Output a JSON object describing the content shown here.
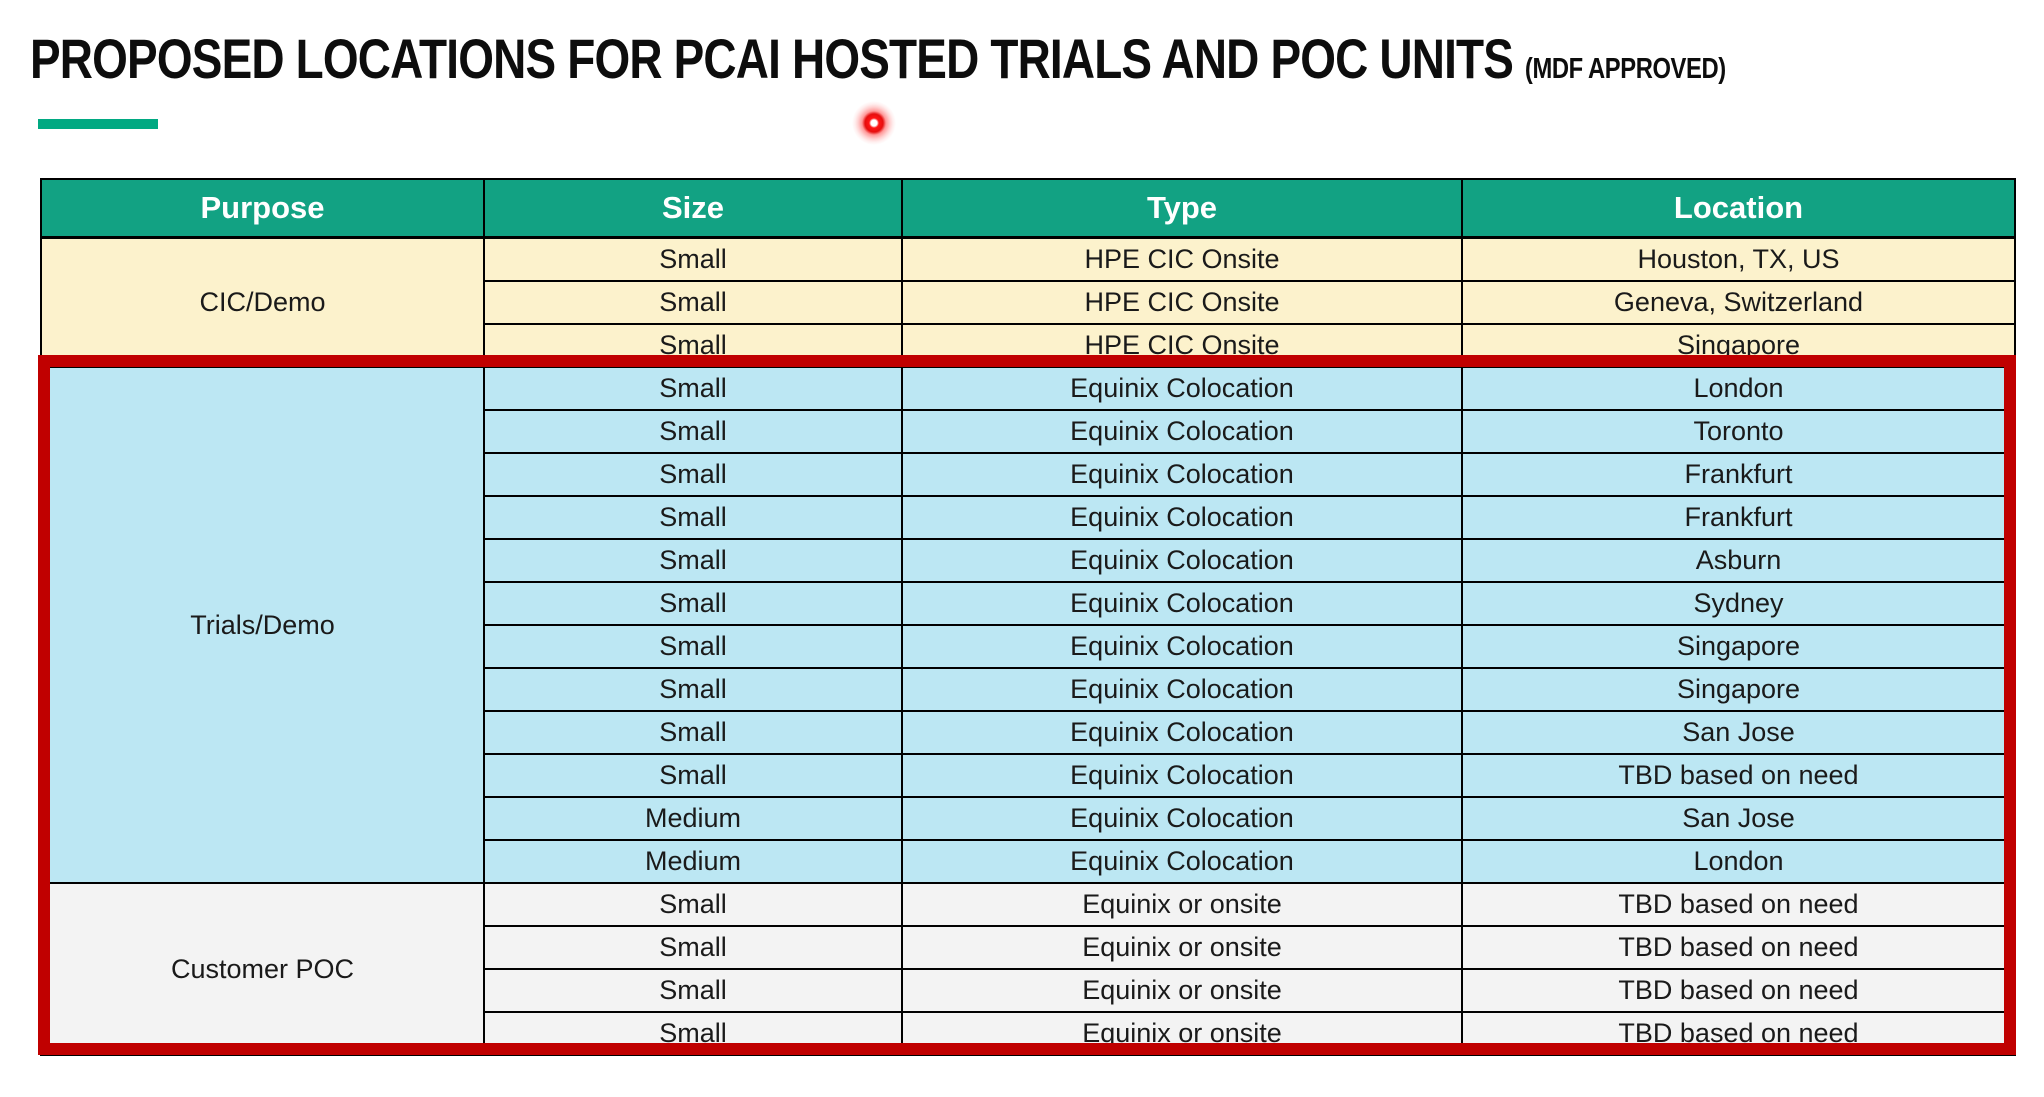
{
  "slide": {
    "title": "PROPOSED LOCATIONS FOR PCAI HOSTED TRIALS AND POC UNITS",
    "title_suffix": "(MDF APPROVED)",
    "accent_bar_color": "#01A982",
    "laser_pointer_color": "#FF1414"
  },
  "table": {
    "headers": [
      "Purpose",
      "Size",
      "Type",
      "Location"
    ],
    "header_bg": "#12A283",
    "header_text_color": "#FFFFFF",
    "sections": [
      {
        "purpose": "CIC/Demo",
        "bg": "#FCF2CC",
        "rows": [
          {
            "size": "Small",
            "type": "HPE CIC Onsite",
            "location": "Houston, TX, US"
          },
          {
            "size": "Small",
            "type": "HPE CIC Onsite",
            "location": "Geneva, Switzerland"
          },
          {
            "size": "Small",
            "type": "HPE CIC Onsite",
            "location": "Singapore"
          }
        ]
      },
      {
        "purpose": "Trials/Demo",
        "bg": "#BCE7F3",
        "rows": [
          {
            "size": "Small",
            "type": "Equinix Colocation",
            "location": "London"
          },
          {
            "size": "Small",
            "type": "Equinix Colocation",
            "location": "Toronto"
          },
          {
            "size": "Small",
            "type": "Equinix Colocation",
            "location": "Frankfurt"
          },
          {
            "size": "Small",
            "type": "Equinix Colocation",
            "location": "Frankfurt"
          },
          {
            "size": "Small",
            "type": "Equinix Colocation",
            "location": "Asburn"
          },
          {
            "size": "Small",
            "type": "Equinix Colocation",
            "location": "Sydney"
          },
          {
            "size": "Small",
            "type": "Equinix Colocation",
            "location": "Singapore"
          },
          {
            "size": "Small",
            "type": "Equinix Colocation",
            "location": "Singapore"
          },
          {
            "size": "Small",
            "type": "Equinix Colocation",
            "location": "San Jose"
          },
          {
            "size": "Small",
            "type": "Equinix Colocation",
            "location": "TBD based on need"
          },
          {
            "size": "Medium",
            "type": "Equinix Colocation",
            "location": "San Jose"
          },
          {
            "size": "Medium",
            "type": "Equinix Colocation",
            "location": "London"
          }
        ]
      },
      {
        "purpose": "Customer POC",
        "bg": "#F3F3F3",
        "rows": [
          {
            "size": "Small",
            "type": "Equinix or onsite",
            "location": "TBD based on need"
          },
          {
            "size": "Small",
            "type": "Equinix or onsite",
            "location": "TBD based on need"
          },
          {
            "size": "Small",
            "type": "Equinix or onsite",
            "location": "TBD based on need"
          },
          {
            "size": "Small",
            "type": "Equinix or onsite",
            "location": "TBD based on need"
          }
        ]
      }
    ],
    "highlight": {
      "color": "#C00000",
      "covers_sections": [
        "Trials/Demo",
        "Customer POC"
      ]
    }
  }
}
